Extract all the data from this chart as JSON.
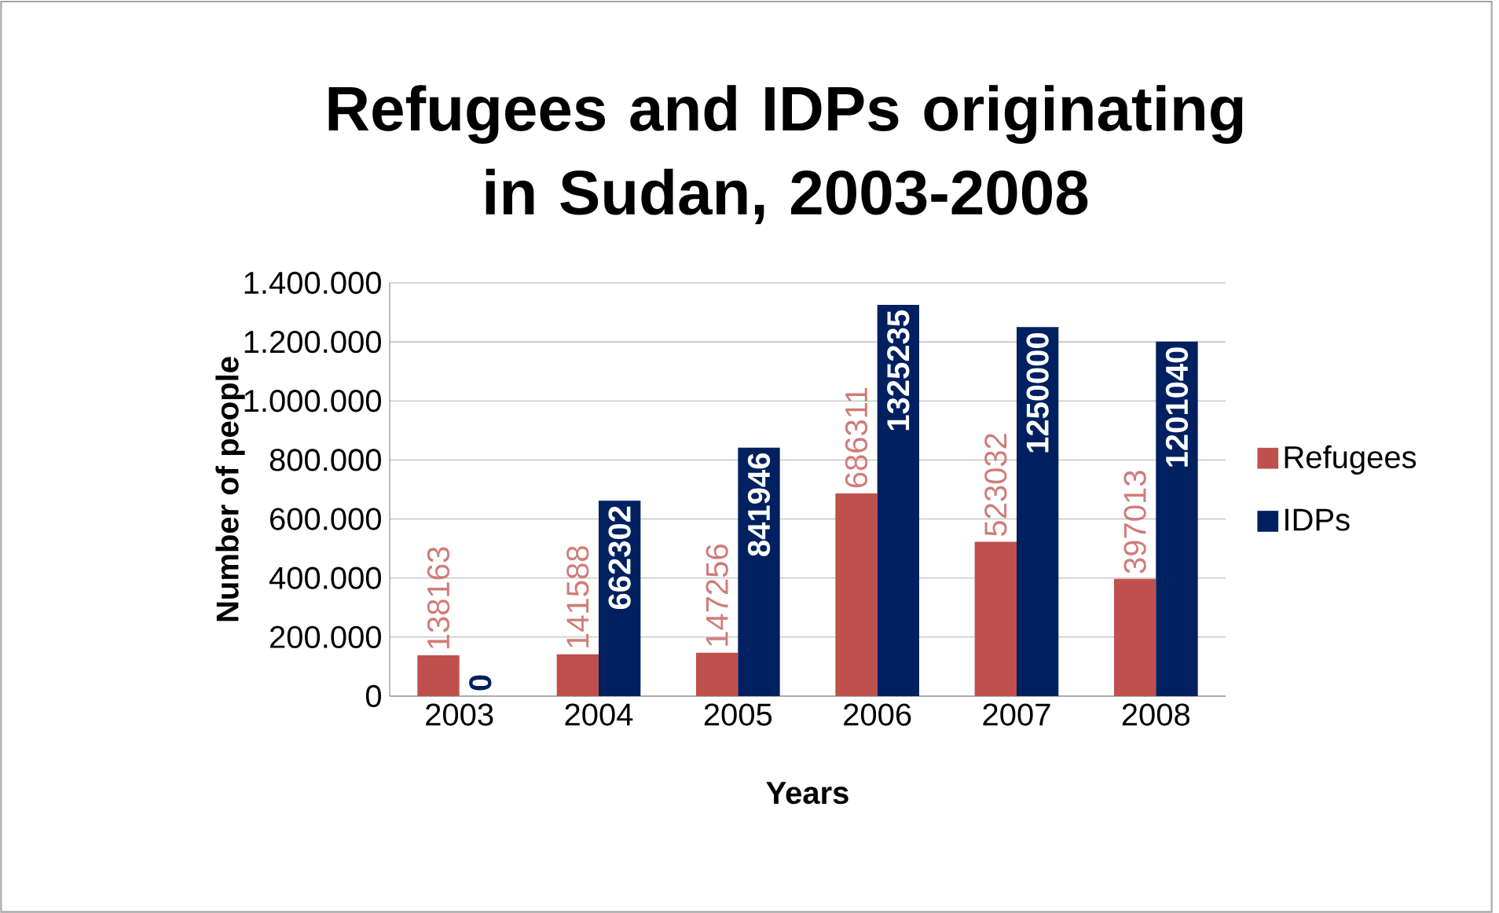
{
  "chart_data": {
    "type": "bar",
    "title": "Refugees and IDPs originating in Sudan, 2003-2008",
    "xlabel": "Years",
    "ylabel": "Number of people",
    "categories": [
      "2003",
      "2004",
      "2005",
      "2006",
      "2007",
      "2008"
    ],
    "series": [
      {
        "name": "Refugees",
        "color": "#c0504d",
        "values": [
          138163,
          141588,
          147256,
          686311,
          523032,
          397013
        ]
      },
      {
        "name": "IDPs",
        "color": "#002060",
        "values": [
          0,
          662302,
          841946,
          1325235,
          1250000,
          1201040
        ]
      }
    ],
    "ylim": [
      0,
      1400000
    ],
    "yticks": [
      0,
      {
        "value": 200000,
        "label": "200.000"
      },
      {
        "value": 400000,
        "label": "400.000"
      },
      {
        "value": 600000,
        "label": "600.000"
      },
      {
        "value": 800000,
        "label": "800.000"
      },
      {
        "value": 1000000,
        "label": "1.000.000"
      },
      {
        "value": 1200000,
        "label": "1.200.000"
      },
      {
        "value": 1400000,
        "label": "1.400.000"
      }
    ],
    "grid": "y",
    "legend": "right",
    "data_labels": true
  }
}
